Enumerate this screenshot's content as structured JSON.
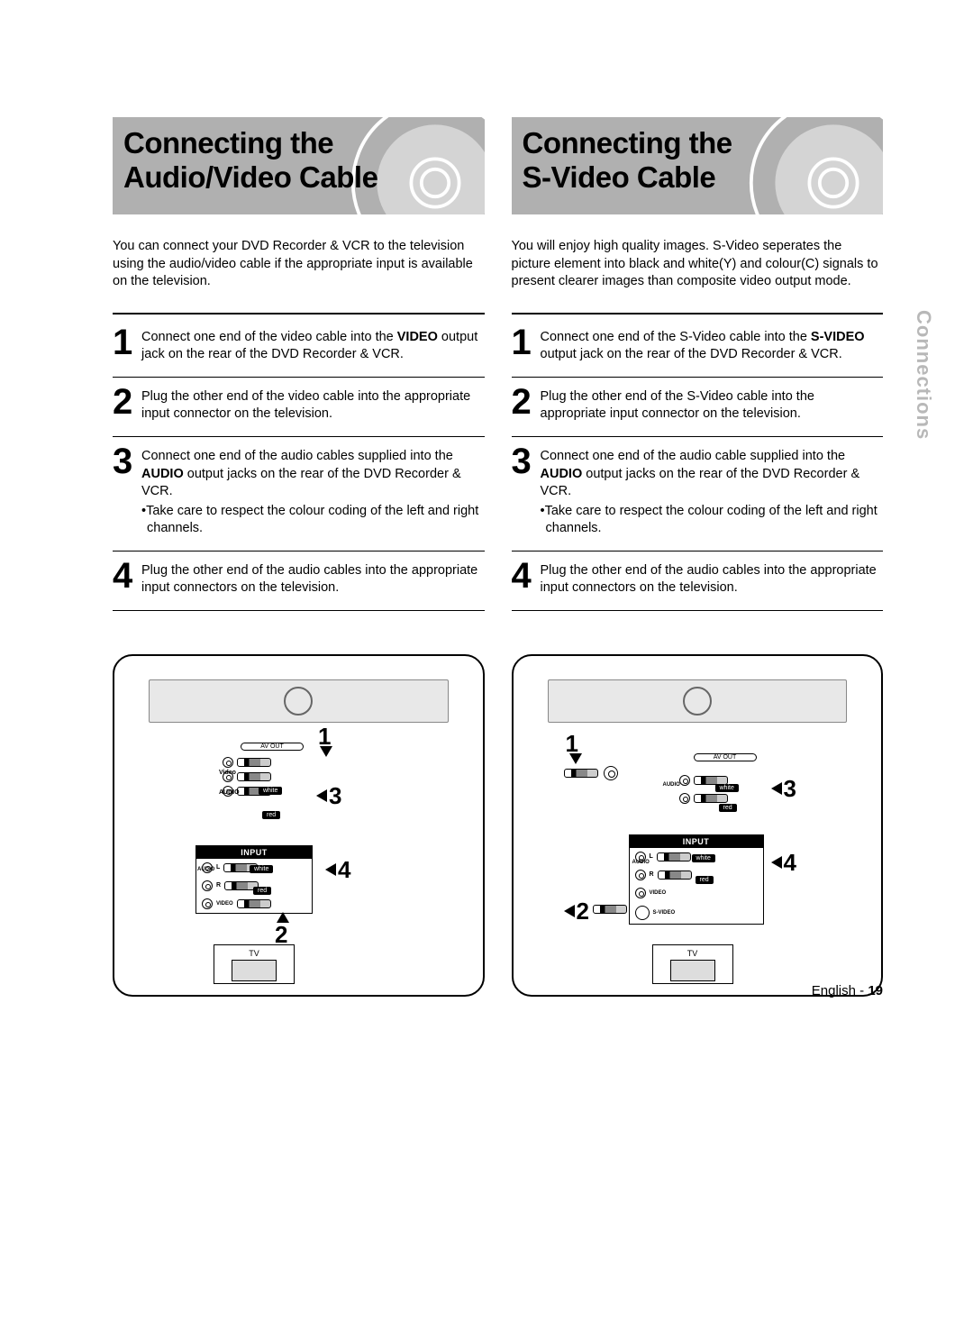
{
  "sideTab": "Connections",
  "footer": {
    "lang": "English",
    "sep": " - ",
    "page": "19"
  },
  "left": {
    "title_l1": "Connecting the",
    "title_l2": "Audio/Video Cable",
    "intro": "You can connect your DVD Recorder & VCR to the television using the audio/video cable if the appropriate input is available on the television.",
    "steps": [
      {
        "n": "1",
        "html": "Connect one end of the video cable into the <b>VIDEO</b> output jack on the rear of the DVD Recorder & VCR."
      },
      {
        "n": "2",
        "html": "Plug the other end of the video cable into the appropriate input connector on the television."
      },
      {
        "n": "3",
        "html": "Connect one end of the audio cables supplied into the <b>AUDIO</b> output jacks on the rear of the DVD Recorder & VCR.",
        "note": "•Take care to respect the colour coding of the left and right channels."
      },
      {
        "n": "4",
        "html": "Plug the other end of the audio cables into the appropriate input connectors on the television."
      }
    ],
    "diagram": {
      "avOut": "AV OUT",
      "inputLabel": "INPUT",
      "labels": {
        "audio_l": "L",
        "audio_r": "R",
        "audio": "AUDIO",
        "video": "VIDEO",
        "white": "white",
        "red": "red",
        "vid": "Video"
      },
      "callouts": [
        "1",
        "2",
        "3",
        "4"
      ],
      "tv": "TV"
    }
  },
  "right": {
    "title_l1": "Connecting the",
    "title_l2": "S-Video Cable",
    "intro": "You will enjoy high quality images. S-Video seperates the picture element into black and white(Y) and colour(C) signals to present clearer images than composite video output mode.",
    "steps": [
      {
        "n": "1",
        "html": "Connect one end of the S-Video cable into the <b>S-VIDEO</b> output jack on the rear of the DVD Recorder & VCR."
      },
      {
        "n": "2",
        "html": "Plug the other end of the S-Video cable into the appropriate input connector on the television."
      },
      {
        "n": "3",
        "html": "Connect one end of the audio cable supplied into the <b>AUDIO</b> output jacks on the rear of the DVD Recorder & VCR.",
        "note": "•Take care to respect the colour coding of the left and right channels."
      },
      {
        "n": "4",
        "html": "Plug the other end of the audio cables into the appropriate input connectors on the television."
      }
    ],
    "diagram": {
      "avOut": "AV OUT",
      "inputLabel": "INPUT",
      "labels": {
        "audio_l": "L",
        "audio_r": "R",
        "audio": "AUDIO",
        "video": "VIDEO",
        "svideo": "S-VIDEO",
        "white": "white",
        "red": "red"
      },
      "callouts": [
        "1",
        "2",
        "3",
        "4"
      ],
      "tv": "TV"
    }
  }
}
